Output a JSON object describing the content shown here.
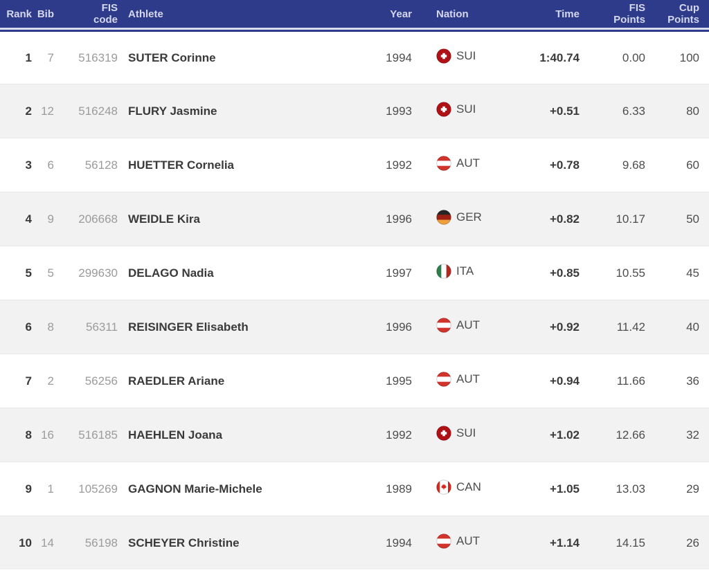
{
  "table": {
    "columns": {
      "rank": "Rank",
      "bib": "Bib",
      "fis_code": "FIS\ncode",
      "athlete": "Athlete",
      "year": "Year",
      "nation": "Nation",
      "time": "Time",
      "fis_points": "FIS\nPoints",
      "cup_points": "Cup\nPoints"
    },
    "rows": [
      {
        "rank": "1",
        "bib": "7",
        "fis_code": "516319",
        "athlete": "SUTER Corinne",
        "year": "1994",
        "nation": {
          "code": "SUI"
        },
        "time": "1:40.74",
        "fis_points": "0.00",
        "cup_points": "100"
      },
      {
        "rank": "2",
        "bib": "12",
        "fis_code": "516248",
        "athlete": "FLURY Jasmine",
        "year": "1993",
        "nation": {
          "code": "SUI"
        },
        "time": "+0.51",
        "fis_points": "6.33",
        "cup_points": "80"
      },
      {
        "rank": "3",
        "bib": "6",
        "fis_code": "56128",
        "athlete": "HUETTER Cornelia",
        "year": "1992",
        "nation": {
          "code": "AUT"
        },
        "time": "+0.78",
        "fis_points": "9.68",
        "cup_points": "60"
      },
      {
        "rank": "4",
        "bib": "9",
        "fis_code": "206668",
        "athlete": "WEIDLE Kira",
        "year": "1996",
        "nation": {
          "code": "GER"
        },
        "time": "+0.82",
        "fis_points": "10.17",
        "cup_points": "50"
      },
      {
        "rank": "5",
        "bib": "5",
        "fis_code": "299630",
        "athlete": "DELAGO Nadia",
        "year": "1997",
        "nation": {
          "code": "ITA"
        },
        "time": "+0.85",
        "fis_points": "10.55",
        "cup_points": "45"
      },
      {
        "rank": "6",
        "bib": "8",
        "fis_code": "56311",
        "athlete": "REISINGER Elisabeth",
        "year": "1996",
        "nation": {
          "code": "AUT"
        },
        "time": "+0.92",
        "fis_points": "11.42",
        "cup_points": "40"
      },
      {
        "rank": "7",
        "bib": "2",
        "fis_code": "56256",
        "athlete": "RAEDLER Ariane",
        "year": "1995",
        "nation": {
          "code": "AUT"
        },
        "time": "+0.94",
        "fis_points": "11.66",
        "cup_points": "36"
      },
      {
        "rank": "8",
        "bib": "16",
        "fis_code": "516185",
        "athlete": "HAEHLEN Joana",
        "year": "1992",
        "nation": {
          "code": "SUI"
        },
        "time": "+1.02",
        "fis_points": "12.66",
        "cup_points": "32"
      },
      {
        "rank": "9",
        "bib": "1",
        "fis_code": "105269",
        "athlete": "GAGNON Marie-Michele",
        "year": "1989",
        "nation": {
          "code": "CAN"
        },
        "time": "+1.05",
        "fis_points": "13.03",
        "cup_points": "29"
      },
      {
        "rank": "10",
        "bib": "14",
        "fis_code": "56198",
        "athlete": "SCHEYER Christine",
        "year": "1994",
        "nation": {
          "code": "AUT"
        },
        "time": "+1.14",
        "fis_points": "14.15",
        "cup_points": "26"
      }
    ]
  },
  "flags": {
    "SUI": {
      "type": "cross",
      "bg": "#b01116",
      "fg": "#ffffff"
    },
    "AUT": {
      "type": "hstripes",
      "colors": [
        "#d0342c",
        "#ffffff",
        "#d0342c"
      ]
    },
    "GER": {
      "type": "hstripes",
      "colors": [
        "#262626",
        "#9e2214",
        "#eea03c"
      ]
    },
    "ITA": {
      "type": "vstripes",
      "colors": [
        "#2e7d4a",
        "#ffffff",
        "#b0281f"
      ]
    },
    "CAN": {
      "type": "canada",
      "bg": "#ffffff",
      "band": "#d8281e",
      "leaf": "#d8281e"
    }
  },
  "colors": {
    "header_bg": "#2e3a8a",
    "header_text": "#d4d8ed",
    "header_light_rule": "#d9dcef",
    "row_alt_bg": "#f2f2f2",
    "row_divider": "#e7e7e7",
    "text_dark": "#3a3a3a",
    "text_medium": "#4d4d4d",
    "text_muted": "#9b9b9b"
  }
}
